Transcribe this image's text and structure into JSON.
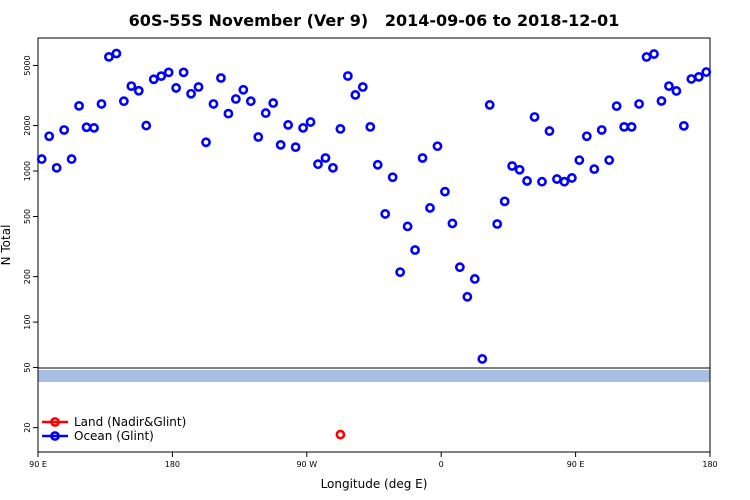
{
  "chart_data": {
    "type": "scatter",
    "title": "60S-55S November (Ver 9)   2014-09-06 to 2018-12-01",
    "xlabel": "Longitude (deg E)",
    "ylabel": "N Total",
    "ylog": true,
    "legend": "bottom-left",
    "xlim": [
      90,
      540
    ],
    "ylim": [
      13.8,
      7600
    ],
    "xticks": [
      {
        "value": 90,
        "label": "90 E"
      },
      180,
      {
        "value": 270,
        "label": "90 W"
      },
      {
        "value": 360,
        "label": "0"
      },
      {
        "value": 450,
        "label": "90 E"
      },
      {
        "value": 540,
        "label": "180"
      }
    ],
    "yticks": [
      20,
      50,
      100,
      200,
      500,
      1000,
      2000,
      5000
    ],
    "series": [
      {
        "name": "Land (Nadir&Glint)",
        "color": "#ff0000",
        "x": [
          292.5
        ],
        "values": [
          18
        ]
      },
      {
        "name": "Ocean (Glint)",
        "color": "#0000ff",
        "x": [
          92.5,
          97.5,
          102.5,
          107.5,
          112.5,
          117.5,
          122.5,
          127.5,
          132.5,
          137.5,
          142.5,
          147.5,
          152.5,
          157.5,
          162.5,
          167.5,
          172.5,
          177.5,
          182.5,
          187.5,
          192.5,
          197.5,
          202.5,
          207.5,
          212.5,
          217.5,
          222.5,
          227.5,
          232.5,
          237.5,
          242.5,
          247.5,
          252.5,
          257.5,
          262.5,
          267.5,
          272.5,
          277.5,
          282.5,
          287.5,
          292.5,
          297.5,
          302.5,
          307.5,
          312.5,
          317.5,
          322.5,
          327.5,
          332.5,
          337.5,
          342.5,
          347.5,
          352.5,
          357.5,
          362.5,
          367.5,
          372.5,
          377.5,
          382.5,
          387.5,
          392.5,
          397.5,
          402.5,
          407.5,
          412.5,
          417.5,
          422.5,
          427.5,
          432.5,
          437.5,
          442.5,
          447.5,
          452.5,
          457.5,
          462.5,
          467.5,
          472.5,
          477.5,
          482.5,
          487.5,
          492.5,
          497.5,
          502.5,
          507.5,
          512.5,
          517.5,
          522.5,
          527.5,
          532.5,
          537.5
        ],
        "values": [
          1200,
          1700,
          1050,
          1870,
          1200,
          2700,
          1950,
          1930,
          2780,
          5700,
          6000,
          2900,
          3650,
          3400,
          2000,
          4050,
          4250,
          4500,
          3550,
          4500,
          3250,
          3600,
          1550,
          2780,
          4130,
          2400,
          3000,
          3450,
          2900,
          1680,
          2420,
          2820,
          1490,
          2020,
          1440,
          1930,
          2110,
          1110,
          1220,
          1050,
          1900,
          4260,
          3190,
          3600,
          1960,
          1100,
          520,
          910,
          214,
          430,
          300,
          1220,
          570,
          1460,
          730,
          450,
          231,
          147,
          193,
          57,
          2740,
          446,
          630,
          1080,
          1020,
          860,
          2280,
          850,
          1840,
          885,
          850,
          900,
          1180,
          1700,
          1030,
          1870,
          1180,
          2690,
          1960,
          1960,
          2780,
          5690,
          5950,
          2910,
          3650,
          3390,
          1990,
          4070,
          4200,
          4520
        ]
      }
    ]
  }
}
